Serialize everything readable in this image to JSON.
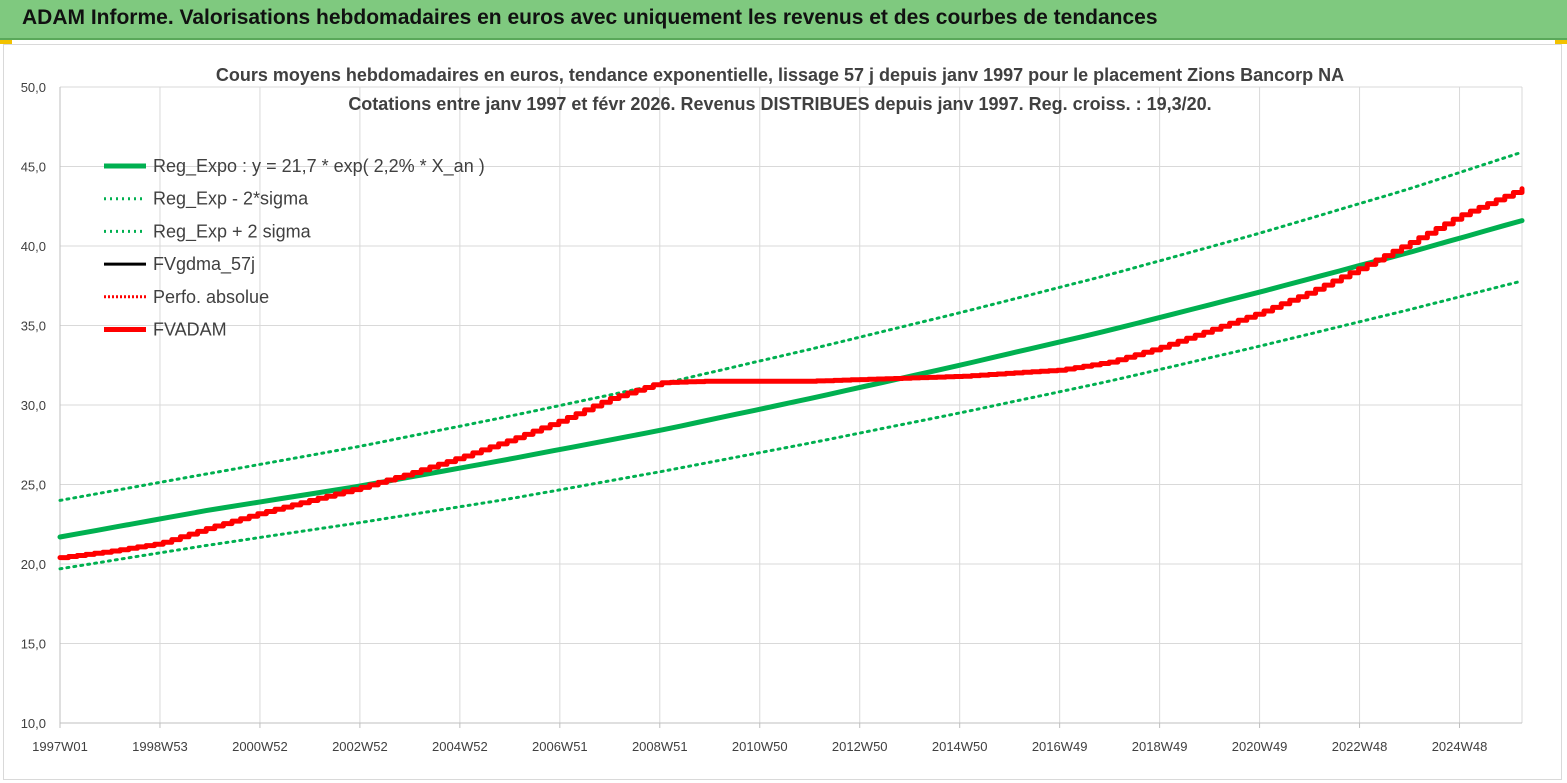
{
  "banner": {
    "title": "ADAM Informe. Valorisations hebdomadaires en euros avec uniquement les revenus et des courbes de tendances"
  },
  "colors": {
    "banner": "#7fc97f",
    "trend": "#00b050",
    "fvadam": "#ff0000",
    "gdma": "#000000",
    "perfo": "#ff0000",
    "grid": "#d9d9d9",
    "text": "#404040"
  },
  "chart_data": {
    "type": "line",
    "title": "Cours moyens hebdomadaires en euros, tendance exponentielle, lissage 57 j depuis janv 1997 pour le placement Zions Bancorp NA",
    "subtitle": "Cotations entre janv 1997 et févr 2026. Revenus DISTRIBUES depuis janv 1997. Reg. croiss. : 19,3/20.",
    "xlabel": "",
    "ylabel": "",
    "ylim": [
      10,
      50
    ],
    "xlim": [
      1997.0,
      2026.25
    ],
    "y_ticks": [
      "10,0",
      "15,0",
      "20,0",
      "25,0",
      "30,0",
      "35,0",
      "40,0",
      "45,0",
      "50,0"
    ],
    "x_ticks": [
      {
        "label": "1997W01",
        "x": 1997.0
      },
      {
        "label": "1998W53",
        "x": 1999.0
      },
      {
        "label": "2000W52",
        "x": 2001.0
      },
      {
        "label": "2002W52",
        "x": 2003.0
      },
      {
        "label": "2004W52",
        "x": 2005.0
      },
      {
        "label": "2006W51",
        "x": 2007.0
      },
      {
        "label": "2008W51",
        "x": 2009.0
      },
      {
        "label": "2010W50",
        "x": 2011.0
      },
      {
        "label": "2012W50",
        "x": 2013.0
      },
      {
        "label": "2014W50",
        "x": 2015.0
      },
      {
        "label": "2016W49",
        "x": 2017.0
      },
      {
        "label": "2018W49",
        "x": 2019.0
      },
      {
        "label": "2020W49",
        "x": 2021.0
      },
      {
        "label": "2022W48",
        "x": 2023.0
      },
      {
        "label": "2024W48",
        "x": 2025.0
      }
    ],
    "grid": true,
    "legend_position": "top-left",
    "series": [
      {
        "name": "Reg_Expo : y = 21,7 * exp( 2,2% *  X_an )",
        "style": "solid-thick",
        "color": "#00b050",
        "points": [
          [
            1997.0,
            21.7
          ],
          [
            2000.0,
            23.4
          ],
          [
            2003.0,
            24.9
          ],
          [
            2006.0,
            26.6
          ],
          [
            2009.0,
            28.4
          ],
          [
            2012.0,
            30.4
          ],
          [
            2015.0,
            32.5
          ],
          [
            2018.0,
            34.7
          ],
          [
            2021.0,
            37.1
          ],
          [
            2024.0,
            39.6
          ],
          [
            2026.25,
            41.6
          ]
        ]
      },
      {
        "name": "Reg_Exp - 2*sigma",
        "style": "dotted",
        "color": "#00b050",
        "points": [
          [
            1997.0,
            19.7
          ],
          [
            2000.0,
            21.2
          ],
          [
            2003.0,
            22.6
          ],
          [
            2006.0,
            24.1
          ],
          [
            2009.0,
            25.8
          ],
          [
            2012.0,
            27.6
          ],
          [
            2015.0,
            29.5
          ],
          [
            2018.0,
            31.5
          ],
          [
            2021.0,
            33.7
          ],
          [
            2024.0,
            36.0
          ],
          [
            2026.25,
            37.8
          ]
        ]
      },
      {
        "name": "Reg_Exp + 2 sigma",
        "style": "dotted",
        "color": "#00b050",
        "points": [
          [
            1997.0,
            24.0
          ],
          [
            2000.0,
            25.7
          ],
          [
            2003.0,
            27.4
          ],
          [
            2006.0,
            29.3
          ],
          [
            2009.0,
            31.3
          ],
          [
            2012.0,
            33.5
          ],
          [
            2015.0,
            35.8
          ],
          [
            2018.0,
            38.2
          ],
          [
            2021.0,
            40.8
          ],
          [
            2024.0,
            43.6
          ],
          [
            2026.25,
            45.9
          ]
        ]
      },
      {
        "name": "FVgdma_57j",
        "style": "solid",
        "color": "#000000",
        "points": []
      },
      {
        "name": "Perfo. absolue",
        "style": "dotted-thin",
        "color": "#ff0000",
        "points": []
      },
      {
        "name": "FVADAM",
        "style": "solid-thick",
        "color": "#ff0000",
        "points": [
          [
            1997.0,
            20.4
          ],
          [
            1998.0,
            20.8
          ],
          [
            1999.0,
            21.3
          ],
          [
            2000.0,
            22.3
          ],
          [
            2001.0,
            23.2
          ],
          [
            2002.0,
            24.0
          ],
          [
            2003.0,
            24.8
          ],
          [
            2004.0,
            25.7
          ],
          [
            2005.0,
            26.7
          ],
          [
            2006.0,
            27.8
          ],
          [
            2007.0,
            29.0
          ],
          [
            2008.0,
            30.4
          ],
          [
            2009.0,
            31.4
          ],
          [
            2010.0,
            31.5
          ],
          [
            2011.0,
            31.5
          ],
          [
            2012.0,
            31.5
          ],
          [
            2013.0,
            31.6
          ],
          [
            2014.0,
            31.7
          ],
          [
            2015.0,
            31.8
          ],
          [
            2016.0,
            32.0
          ],
          [
            2017.0,
            32.2
          ],
          [
            2018.0,
            32.7
          ],
          [
            2019.0,
            33.6
          ],
          [
            2020.0,
            34.7
          ],
          [
            2021.0,
            35.8
          ],
          [
            2022.0,
            37.1
          ],
          [
            2023.0,
            38.6
          ],
          [
            2024.0,
            40.2
          ],
          [
            2025.0,
            41.9
          ],
          [
            2026.25,
            43.6
          ]
        ]
      }
    ]
  }
}
